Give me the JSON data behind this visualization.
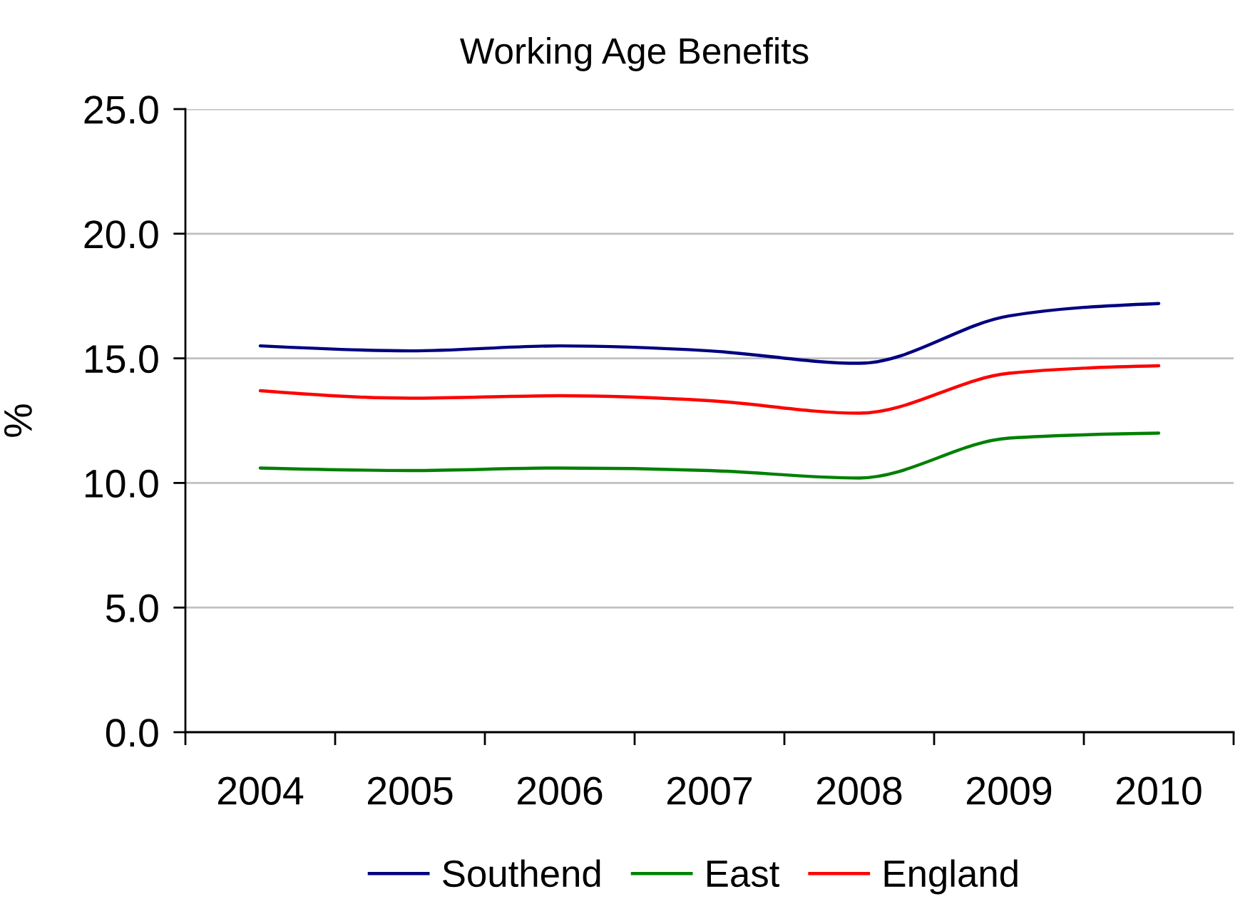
{
  "chart_data": {
    "type": "line",
    "title": "Working Age Benefits",
    "ylabel": "%",
    "categories": [
      "2004",
      "2005",
      "2006",
      "2007",
      "2008",
      "2009",
      "2010"
    ],
    "series": [
      {
        "name": "Southend",
        "color": "#000080",
        "values": [
          15.5,
          15.3,
          15.5,
          15.3,
          14.8,
          16.7,
          17.2
        ]
      },
      {
        "name": "East",
        "color": "#008000",
        "values": [
          10.6,
          10.5,
          10.6,
          10.5,
          10.2,
          11.8,
          12.0
        ]
      },
      {
        "name": "England",
        "color": "#ff0000",
        "values": [
          13.7,
          13.4,
          13.5,
          13.3,
          12.8,
          14.4,
          14.7
        ]
      }
    ],
    "ylim": [
      0,
      25
    ],
    "yticks": [
      {
        "value": 0,
        "label": "0.0"
      },
      {
        "value": 5,
        "label": "5.0"
      },
      {
        "value": 10,
        "label": "10.0"
      },
      {
        "value": 15,
        "label": "15.0"
      },
      {
        "value": 20,
        "label": "20.0"
      },
      {
        "value": 25,
        "label": "25.0"
      }
    ],
    "grid": "y",
    "legend": "bottom",
    "line_style": "solid"
  }
}
